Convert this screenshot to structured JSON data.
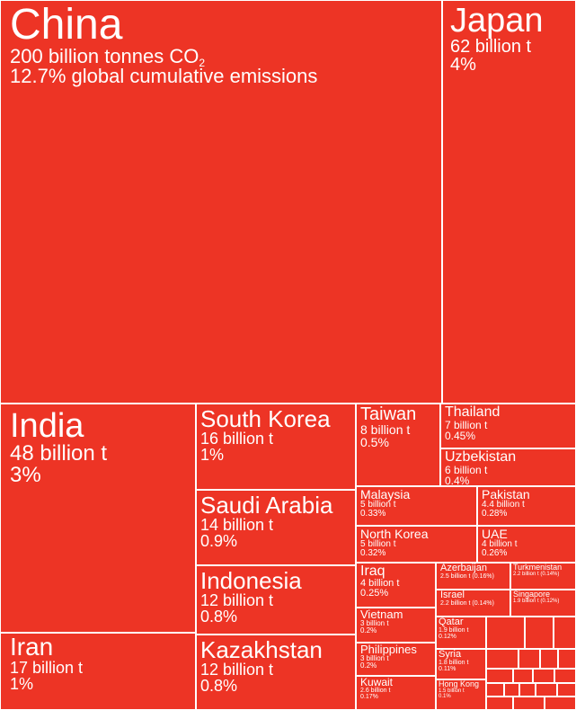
{
  "chart_data": {
    "type": "treemap",
    "colors": {
      "fill": "#ed3425",
      "border": "#ffffff",
      "text": "#ffffff"
    },
    "items": [
      {
        "name": "China",
        "value_label": "200 billion tonnes CO",
        "value_sub": "2",
        "pct_label": "12.7% global cumulative emissions",
        "value_billion_t": 200,
        "share_pct": 12.7
      },
      {
        "name": "Japan",
        "value_label": "62 billion t",
        "pct_label": "4%",
        "value_billion_t": 62,
        "share_pct": 4
      },
      {
        "name": "India",
        "value_label": "48 billion t",
        "pct_label": "3%",
        "value_billion_t": 48,
        "share_pct": 3
      },
      {
        "name": "Iran",
        "value_label": "17 billion t",
        "pct_label": "1%",
        "value_billion_t": 17,
        "share_pct": 1
      },
      {
        "name": "South Korea",
        "value_label": "16 billion t",
        "pct_label": "1%",
        "value_billion_t": 16,
        "share_pct": 1
      },
      {
        "name": "Saudi Arabia",
        "value_label": "14 billion t",
        "pct_label": "0.9%",
        "value_billion_t": 14,
        "share_pct": 0.9
      },
      {
        "name": "Indonesia",
        "value_label": "12 billion t",
        "pct_label": "0.8%",
        "value_billion_t": 12,
        "share_pct": 0.8
      },
      {
        "name": "Kazakhstan",
        "value_label": "12 billion t",
        "pct_label": "0.8%",
        "value_billion_t": 12,
        "share_pct": 0.8
      },
      {
        "name": "Taiwan",
        "value_label": "8 billion t",
        "pct_label": "0.5%",
        "value_billion_t": 8,
        "share_pct": 0.5
      },
      {
        "name": "Thailand",
        "value_label": "7 billion t",
        "pct_label": "0.45%",
        "value_billion_t": 7,
        "share_pct": 0.45
      },
      {
        "name": "Uzbekistan",
        "value_label": "6 billion t",
        "pct_label": "0.4%",
        "value_billion_t": 6,
        "share_pct": 0.4
      },
      {
        "name": "Malaysia",
        "value_label": "5 billion t",
        "pct_label": "0.33%",
        "value_billion_t": 5,
        "share_pct": 0.33
      },
      {
        "name": "Pakistan",
        "value_label": "4.4 billion t",
        "pct_label": "0.28%",
        "value_billion_t": 4.4,
        "share_pct": 0.28
      },
      {
        "name": "North Korea",
        "value_label": "5 billion t",
        "pct_label": "0.32%",
        "value_billion_t": 5,
        "share_pct": 0.32
      },
      {
        "name": "UAE",
        "value_label": "4 billion t",
        "pct_label": "0.26%",
        "value_billion_t": 4,
        "share_pct": 0.26
      },
      {
        "name": "Iraq",
        "value_label": "4 billion t",
        "pct_label": "0.25%",
        "value_billion_t": 4,
        "share_pct": 0.25
      },
      {
        "name": "Azerbaijan",
        "value_label": "2.5 billion t (0.16%)",
        "value_billion_t": 2.5,
        "share_pct": 0.16
      },
      {
        "name": "Turkmenistan",
        "value_label": "2.2 billion t (0.14%)",
        "value_billion_t": 2.2,
        "share_pct": 0.14
      },
      {
        "name": "Israel",
        "value_label": "2.2 billion t (0.14%)",
        "value_billion_t": 2.2,
        "share_pct": 0.14
      },
      {
        "name": "Singapore",
        "value_label": "1.9 billion t (0.12%)",
        "value_billion_t": 1.9,
        "share_pct": 0.12
      },
      {
        "name": "Vietnam",
        "value_label": "3 billion t",
        "pct_label": "0.2%",
        "value_billion_t": 3,
        "share_pct": 0.2
      },
      {
        "name": "Philippines",
        "value_label": "3 billion t",
        "pct_label": "0.2%",
        "value_billion_t": 3,
        "share_pct": 0.2
      },
      {
        "name": "Kuwait",
        "value_label": "2.6 billion t",
        "pct_label": "0.17%",
        "value_billion_t": 2.6,
        "share_pct": 0.17
      },
      {
        "name": "Qatar",
        "value_label": "1.9 billion t",
        "pct_label": "0.12%",
        "value_billion_t": 1.9,
        "share_pct": 0.12
      },
      {
        "name": "Syria",
        "value_label": "1.8 billion t",
        "pct_label": "0.11%",
        "value_billion_t": 1.8,
        "share_pct": 0.11
      },
      {
        "name": "Hong Kong",
        "value_label": "1.5 billion t",
        "pct_label": "0.1%",
        "value_billion_t": 1.5,
        "share_pct": 0.1
      },
      {
        "name": ""
      },
      {
        "name": ""
      },
      {
        "name": ""
      },
      {
        "name": ""
      },
      {
        "name": ""
      },
      {
        "name": ""
      },
      {
        "name": ""
      },
      {
        "name": ""
      },
      {
        "name": ""
      },
      {
        "name": ""
      },
      {
        "name": ""
      },
      {
        "name": ""
      },
      {
        "name": ""
      },
      {
        "name": ""
      },
      {
        "name": ""
      },
      {
        "name": ""
      },
      {
        "name": ""
      },
      {
        "name": ""
      },
      {
        "name": ""
      },
      {
        "name": ""
      },
      {
        "name": ""
      }
    ]
  }
}
